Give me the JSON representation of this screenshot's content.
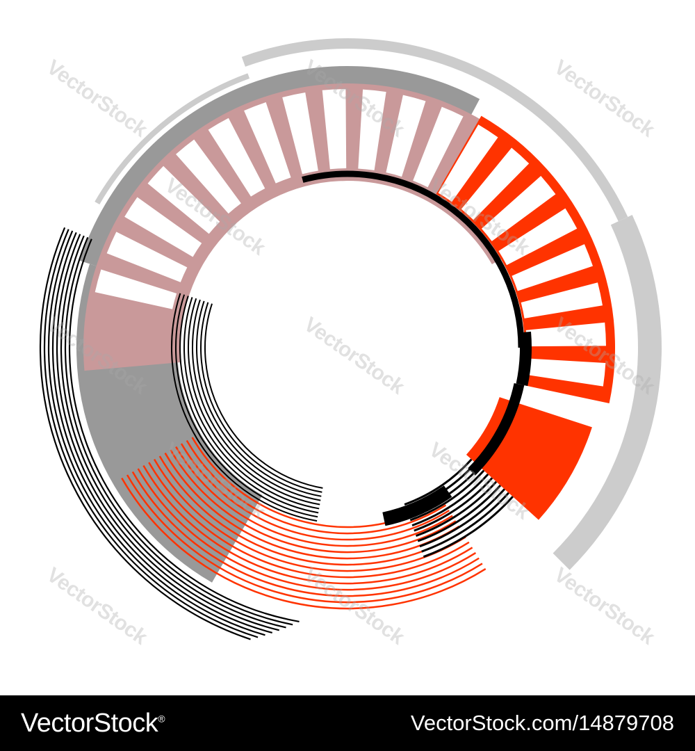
{
  "watermark": {
    "text": "VectorStock"
  },
  "footer": {
    "brand": "VectorStock",
    "registered": "®",
    "code": "VectorStock.com/14879708",
    "background": "#000000",
    "text_color": "#ffffff"
  },
  "colors": {
    "gray": "#999999",
    "light_gray": "#cccccc",
    "pink": "#c9999a",
    "red": "#ff3300",
    "black": "#000000",
    "white": "#ffffff"
  }
}
